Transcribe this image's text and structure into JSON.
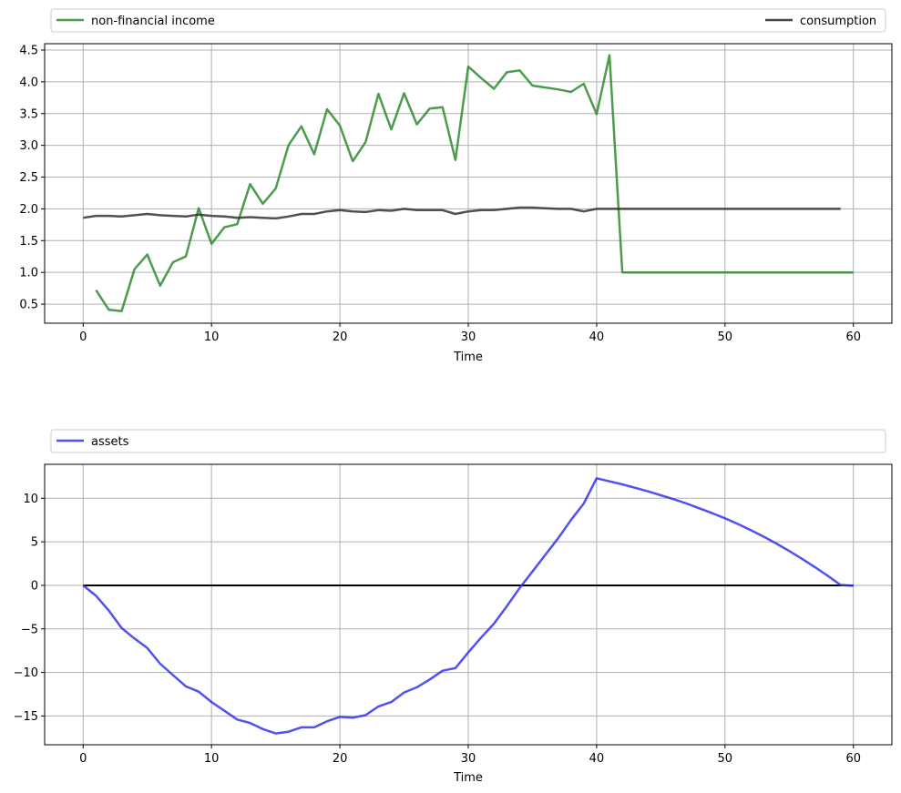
{
  "chart_data": [
    {
      "type": "line",
      "xlabel": "Time",
      "ylabel": "",
      "xlim": [
        -3,
        63
      ],
      "ylim": [
        0.2,
        4.6
      ],
      "xticks": [
        0,
        10,
        20,
        30,
        40,
        50,
        60
      ],
      "yticks": [
        0.5,
        1.0,
        1.5,
        2.0,
        2.5,
        3.0,
        3.5,
        4.0,
        4.5
      ],
      "ytick_labels": [
        "0.5",
        "1.0",
        "1.5",
        "2.0",
        "2.5",
        "3.0",
        "3.5",
        "4.0",
        "4.5"
      ],
      "grid": true,
      "legend": "above, left and right",
      "series": [
        {
          "name": "non-financial income",
          "color": "#2e8b2e",
          "legend_position": "left",
          "x": [
            1,
            2,
            3,
            4,
            5,
            6,
            7,
            8,
            9,
            10,
            11,
            12,
            13,
            14,
            15,
            16,
            17,
            18,
            19,
            20,
            21,
            22,
            23,
            24,
            25,
            26,
            27,
            28,
            29,
            30,
            31,
            32,
            33,
            34,
            35,
            36,
            37,
            38,
            39,
            40,
            41,
            42,
            43,
            44,
            45,
            46,
            47,
            48,
            49,
            50,
            51,
            52,
            53,
            54,
            55,
            56,
            57,
            58,
            59,
            60
          ],
          "values": [
            0.72,
            0.41,
            0.39,
            1.05,
            1.28,
            0.79,
            1.16,
            1.25,
            2.01,
            1.45,
            1.71,
            1.76,
            2.39,
            2.08,
            2.32,
            3.0,
            3.3,
            2.86,
            3.57,
            3.31,
            2.75,
            3.05,
            3.81,
            3.25,
            3.82,
            3.33,
            3.58,
            3.6,
            2.77,
            4.24,
            4.06,
            3.89,
            4.15,
            4.18,
            3.94,
            3.91,
            3.88,
            3.84,
            3.97,
            3.49,
            4.42,
            1.0,
            1.0,
            1.0,
            1.0,
            1.0,
            1.0,
            1.0,
            1.0,
            1.0,
            1.0,
            1.0,
            1.0,
            1.0,
            1.0,
            1.0,
            1.0,
            1.0,
            1.0,
            1.0
          ]
        },
        {
          "name": "consumption",
          "color": "#333333",
          "legend_position": "right",
          "x": [
            0,
            1,
            2,
            3,
            4,
            5,
            6,
            7,
            8,
            9,
            10,
            11,
            12,
            13,
            14,
            15,
            16,
            17,
            18,
            19,
            20,
            21,
            22,
            23,
            24,
            25,
            26,
            27,
            28,
            29,
            30,
            31,
            32,
            33,
            34,
            35,
            36,
            37,
            38,
            39,
            40,
            41,
            42,
            43,
            44,
            45,
            46,
            47,
            48,
            49,
            50,
            51,
            52,
            53,
            54,
            55,
            56,
            57,
            58,
            59
          ],
          "values": [
            1.86,
            1.89,
            1.89,
            1.88,
            1.9,
            1.92,
            1.9,
            1.89,
            1.88,
            1.91,
            1.89,
            1.88,
            1.86,
            1.87,
            1.86,
            1.85,
            1.88,
            1.92,
            1.92,
            1.96,
            1.98,
            1.96,
            1.95,
            1.98,
            1.97,
            2.0,
            1.98,
            1.98,
            1.98,
            1.92,
            1.96,
            1.98,
            1.98,
            2.0,
            2.02,
            2.02,
            2.01,
            2.0,
            2.0,
            1.96,
            2.0,
            2.0,
            2.0,
            2.0,
            2.0,
            2.0,
            2.0,
            2.0,
            2.0,
            2.0,
            2.0,
            2.0,
            2.0,
            2.0,
            2.0,
            2.0,
            2.0,
            2.0,
            2.0,
            2.0
          ]
        }
      ]
    },
    {
      "type": "line",
      "xlabel": "Time",
      "ylabel": "",
      "xlim": [
        -3,
        63
      ],
      "ylim": [
        -18.3,
        13.9
      ],
      "xticks": [
        0,
        10,
        20,
        30,
        40,
        50,
        60
      ],
      "yticks": [
        -15,
        -10,
        -5,
        0,
        5,
        10
      ],
      "ytick_labels": [
        "−15",
        "−10",
        "−5",
        "0",
        "5",
        "10"
      ],
      "grid": true,
      "legend": "above, left",
      "zero_line": true,
      "series": [
        {
          "name": "assets",
          "color": "#3333ee",
          "legend_position": "left",
          "x": [
            0,
            1,
            2,
            3,
            4,
            5,
            6,
            7,
            8,
            9,
            10,
            11,
            12,
            13,
            14,
            15,
            16,
            17,
            18,
            19,
            20,
            21,
            22,
            23,
            24,
            25,
            26,
            27,
            28,
            29,
            30,
            31,
            32,
            33,
            34,
            35,
            36,
            37,
            38,
            39,
            40,
            41,
            42,
            43,
            44,
            45,
            46,
            47,
            48,
            49,
            50,
            51,
            52,
            53,
            54,
            55,
            56,
            57,
            58,
            59,
            60
          ],
          "values": [
            0.0,
            -1.2,
            -2.9,
            -4.9,
            -6.1,
            -7.2,
            -9.0,
            -10.3,
            -11.6,
            -12.2,
            -13.4,
            -14.4,
            -15.4,
            -15.8,
            -16.5,
            -17.0,
            -16.8,
            -16.3,
            -16.3,
            -15.6,
            -15.1,
            -15.2,
            -14.9,
            -13.9,
            -13.4,
            -12.3,
            -11.7,
            -10.8,
            -9.8,
            -9.5,
            -7.7,
            -6.0,
            -4.4,
            -2.4,
            -0.3,
            1.6,
            3.5,
            5.4,
            7.5,
            9.4,
            12.3,
            11.95,
            11.6,
            11.2,
            10.8,
            10.35,
            9.9,
            9.4,
            8.85,
            8.3,
            7.7,
            7.05,
            6.35,
            5.6,
            4.8,
            3.95,
            3.05,
            2.1,
            1.1,
            0.05,
            -0.05
          ]
        }
      ]
    }
  ]
}
